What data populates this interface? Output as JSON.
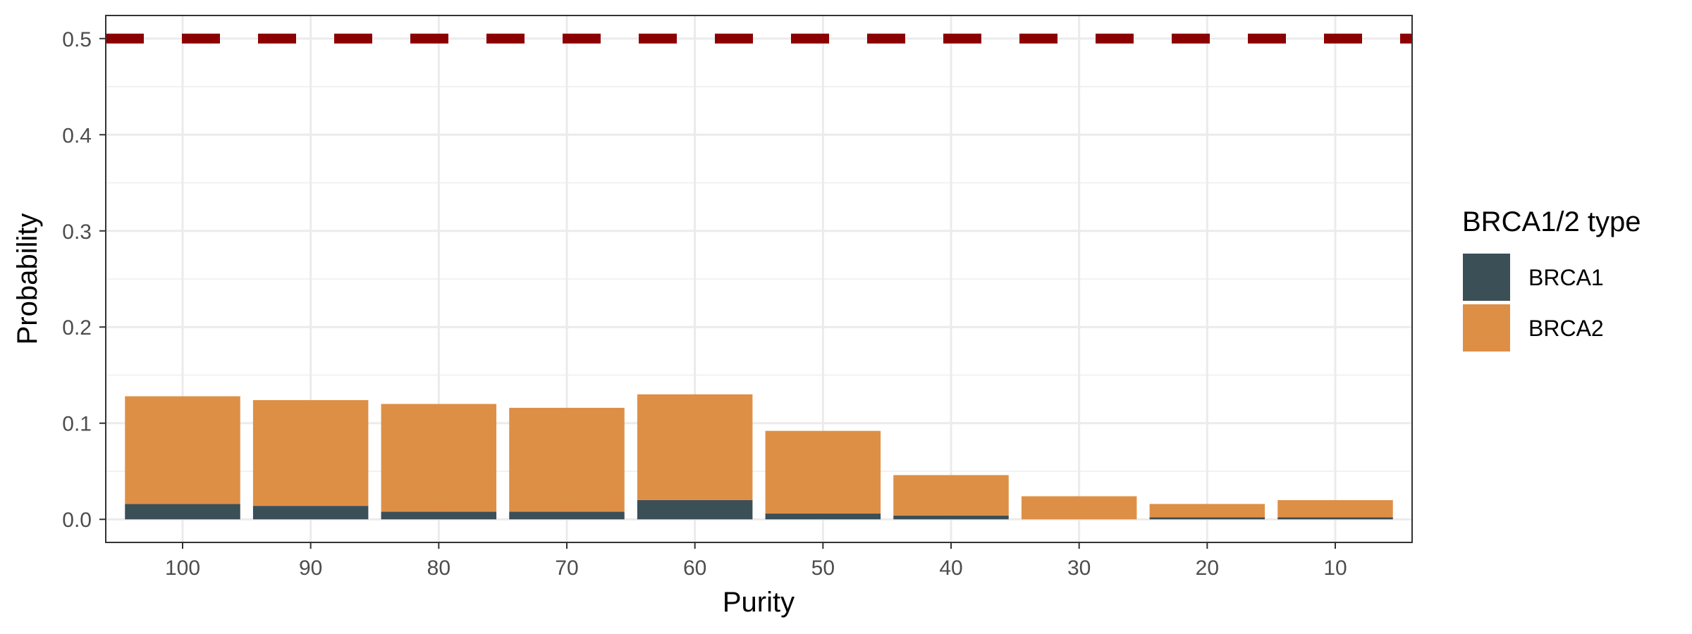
{
  "chart_data": {
    "type": "bar",
    "stacked": true,
    "title": "",
    "xlabel": "Purity",
    "ylabel": "Probability",
    "categories": [
      "100",
      "90",
      "80",
      "70",
      "60",
      "50",
      "40",
      "30",
      "20",
      "10"
    ],
    "series": [
      {
        "name": "BRCA1",
        "color": "#3b4f57",
        "values": [
          0.016,
          0.014,
          0.008,
          0.008,
          0.02,
          0.006,
          0.004,
          0.0,
          0.002,
          0.002
        ]
      },
      {
        "name": "BRCA2",
        "color": "#de8f46",
        "values": [
          0.112,
          0.11,
          0.112,
          0.108,
          0.11,
          0.086,
          0.042,
          0.024,
          0.014,
          0.018
        ]
      }
    ],
    "ylim": [
      -0.024,
      0.524
    ],
    "yticks": [
      0.0,
      0.1,
      0.2,
      0.3,
      0.4,
      0.5
    ],
    "ytick_labels": [
      "0.0",
      "0.1",
      "0.2",
      "0.3",
      "0.4",
      "0.5"
    ],
    "reference_line": {
      "y": 0.5,
      "style": "dashed",
      "color": "#8b0000"
    },
    "grid": true,
    "legend": {
      "title": "BRCA1/2 type",
      "position": "right",
      "entries": [
        "BRCA1",
        "BRCA2"
      ]
    }
  }
}
